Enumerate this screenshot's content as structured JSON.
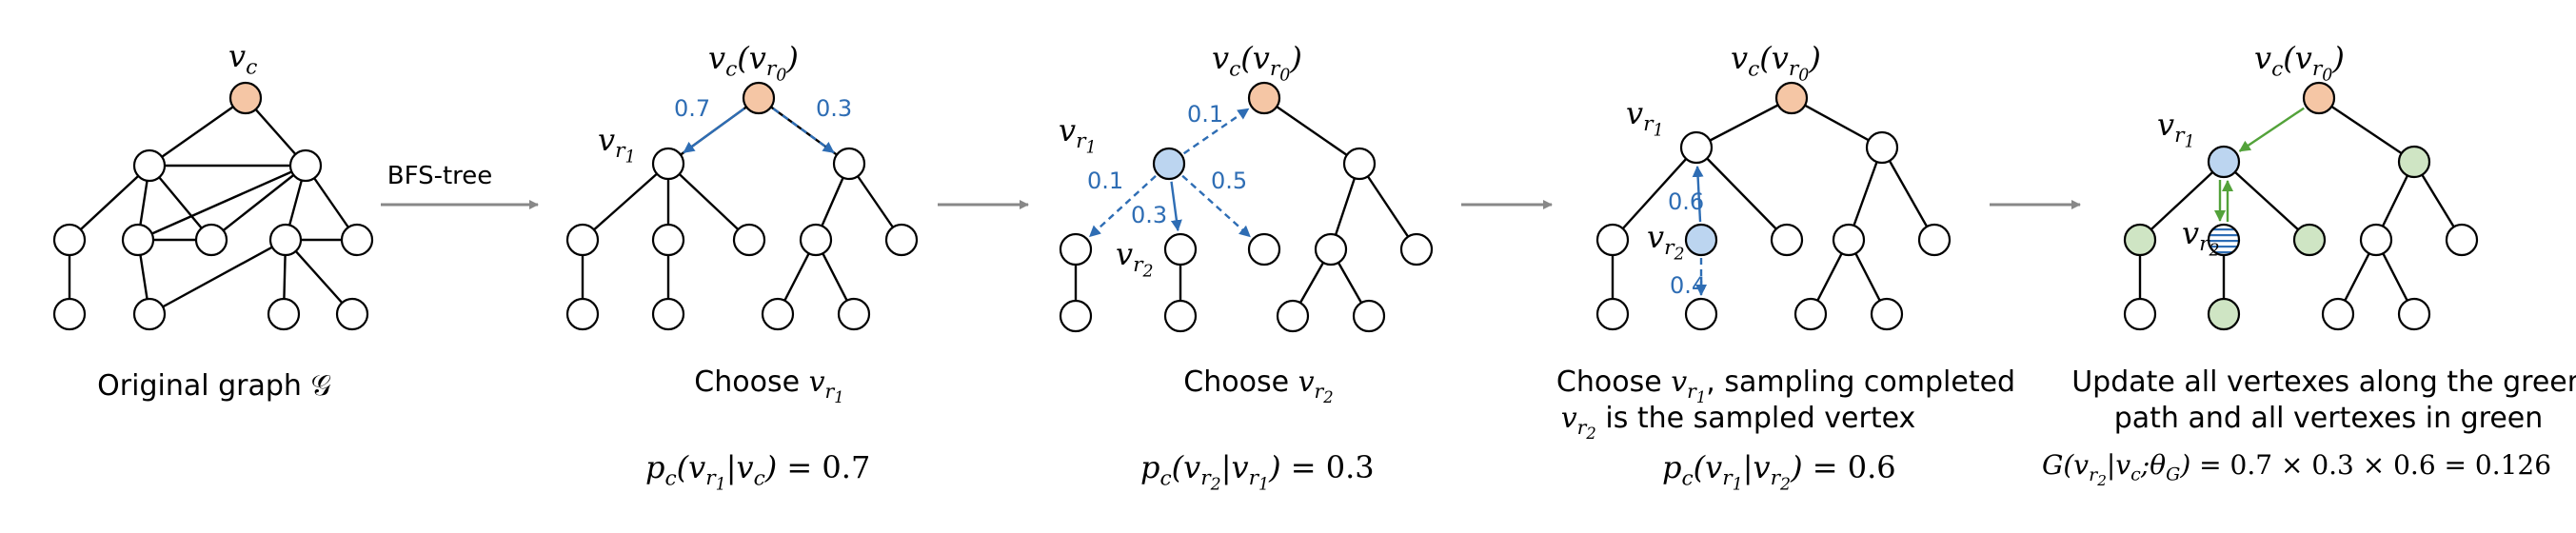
{
  "colors": {
    "origin": "#f5c6a5",
    "selected": "#bcd5f0",
    "updated": "#cfe5c4",
    "sampled_stripe": "#2e6db4",
    "edge": "#000000",
    "prob_arrow": "#2e6db4",
    "update_arrow": "#53a23a",
    "stage_arrow": "#888888"
  },
  "panels": [
    {
      "caption": "Original graph 𝒢",
      "node_label_top": "v_c"
    },
    {
      "edge_caption": "BFS-tree",
      "caption": "Choose v_r1",
      "top_label": "v_c(v_r0)",
      "side_label": "v_r1",
      "probs": [
        "0.7",
        "0.3"
      ],
      "formula": "p_c(v_r1|v_c) = 0.7"
    },
    {
      "caption": "Choose v_r2",
      "top_label": "v_c(v_r0)",
      "labels": [
        "v_r1",
        "v_r2"
      ],
      "probs": [
        "0.1",
        "0.1",
        "0.3",
        "0.5"
      ],
      "formula": "p_c(v_r2|v_r1) = 0.3"
    },
    {
      "caption_line1": "Choose v_r1, sampling completed",
      "caption_line2": "v_r2 is the sampled vertex",
      "top_label": "v_c(v_r0)",
      "labels": [
        "v_r1",
        "v_r2"
      ],
      "probs": [
        "0.6",
        "0.4"
      ],
      "formula": "p_c(v_r1|v_r2) = 0.6"
    },
    {
      "caption_line1": "Update all vertexes along the green",
      "caption_line2": "path and all vertexes in green",
      "top_label": "v_c(v_r0)",
      "labels": [
        "v_r1",
        "v_r2"
      ],
      "formula": "G(v_r2|v_c;θ_G) = 0.7 × 0.3 × 0.6 = 0.126"
    }
  ]
}
